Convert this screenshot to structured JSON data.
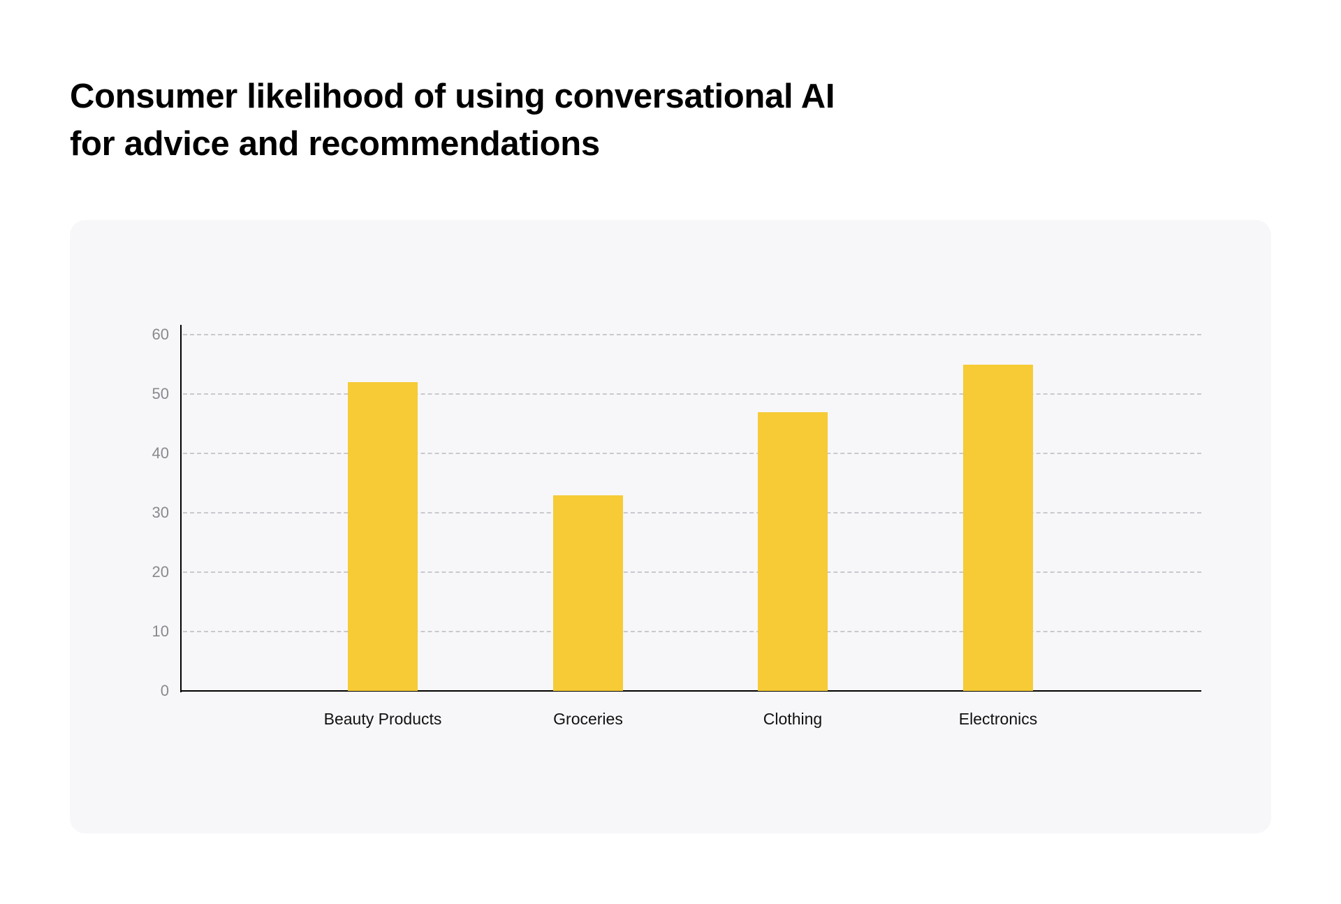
{
  "title": {
    "line1": "Consumer likelihood of using conversational AI",
    "line2": "for advice and recommendations"
  },
  "colors": {
    "bar": "#f6cb36",
    "card_background": "#f7f7fa",
    "gridline": "#c9c9cd",
    "tick_label": "#8a8a8e"
  },
  "chart_data": {
    "type": "bar",
    "title": "Consumer likelihood of using conversational AI for advice and recommendations",
    "categories": [
      "Beauty Products",
      "Groceries",
      "Clothing",
      "Electronics"
    ],
    "values": [
      52,
      33,
      47,
      55
    ],
    "xlabel": "",
    "ylabel": "",
    "ylim": [
      0,
      60
    ],
    "yticks": [
      0,
      10,
      20,
      30,
      40,
      50,
      60
    ],
    "grid": true,
    "grid_style": "dashed horizontal",
    "legend": "none"
  }
}
